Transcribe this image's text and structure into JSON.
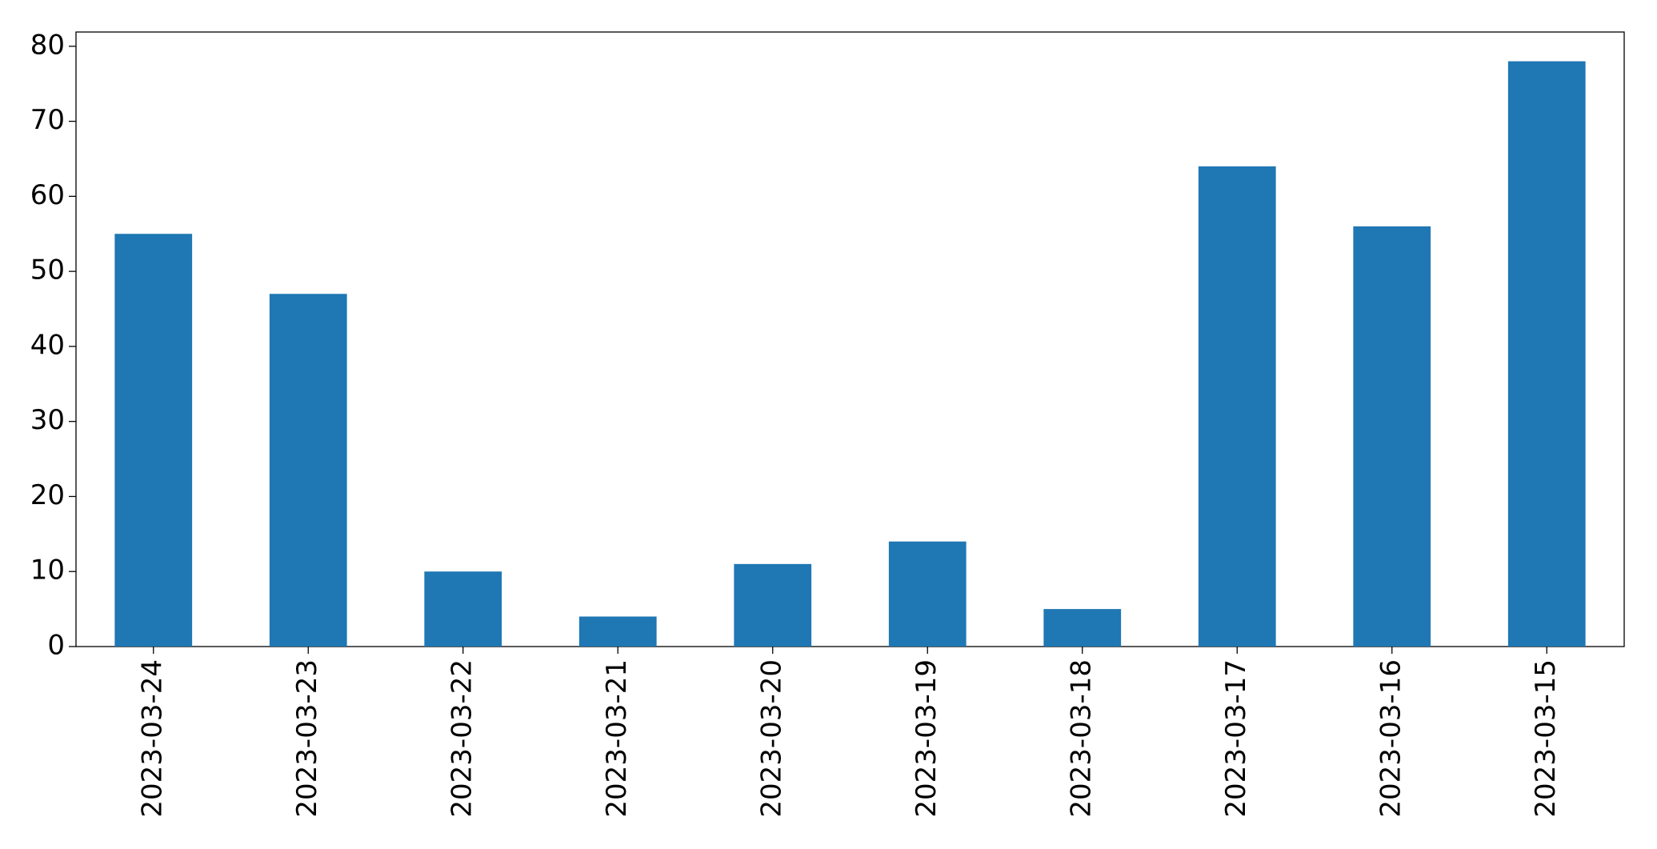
{
  "chart_data": {
    "type": "bar",
    "categories": [
      "2023-03-24",
      "2023-03-23",
      "2023-03-22",
      "2023-03-21",
      "2023-03-20",
      "2023-03-19",
      "2023-03-18",
      "2023-03-17",
      "2023-03-16",
      "2023-03-15"
    ],
    "values": [
      55,
      47,
      10,
      4,
      11,
      14,
      5,
      64,
      56,
      78
    ],
    "color": "#1f77b4",
    "ylim": [
      0,
      81.9
    ],
    "yticks": [
      0,
      10,
      20,
      30,
      40,
      50,
      60,
      70,
      80
    ],
    "grid": false
  }
}
